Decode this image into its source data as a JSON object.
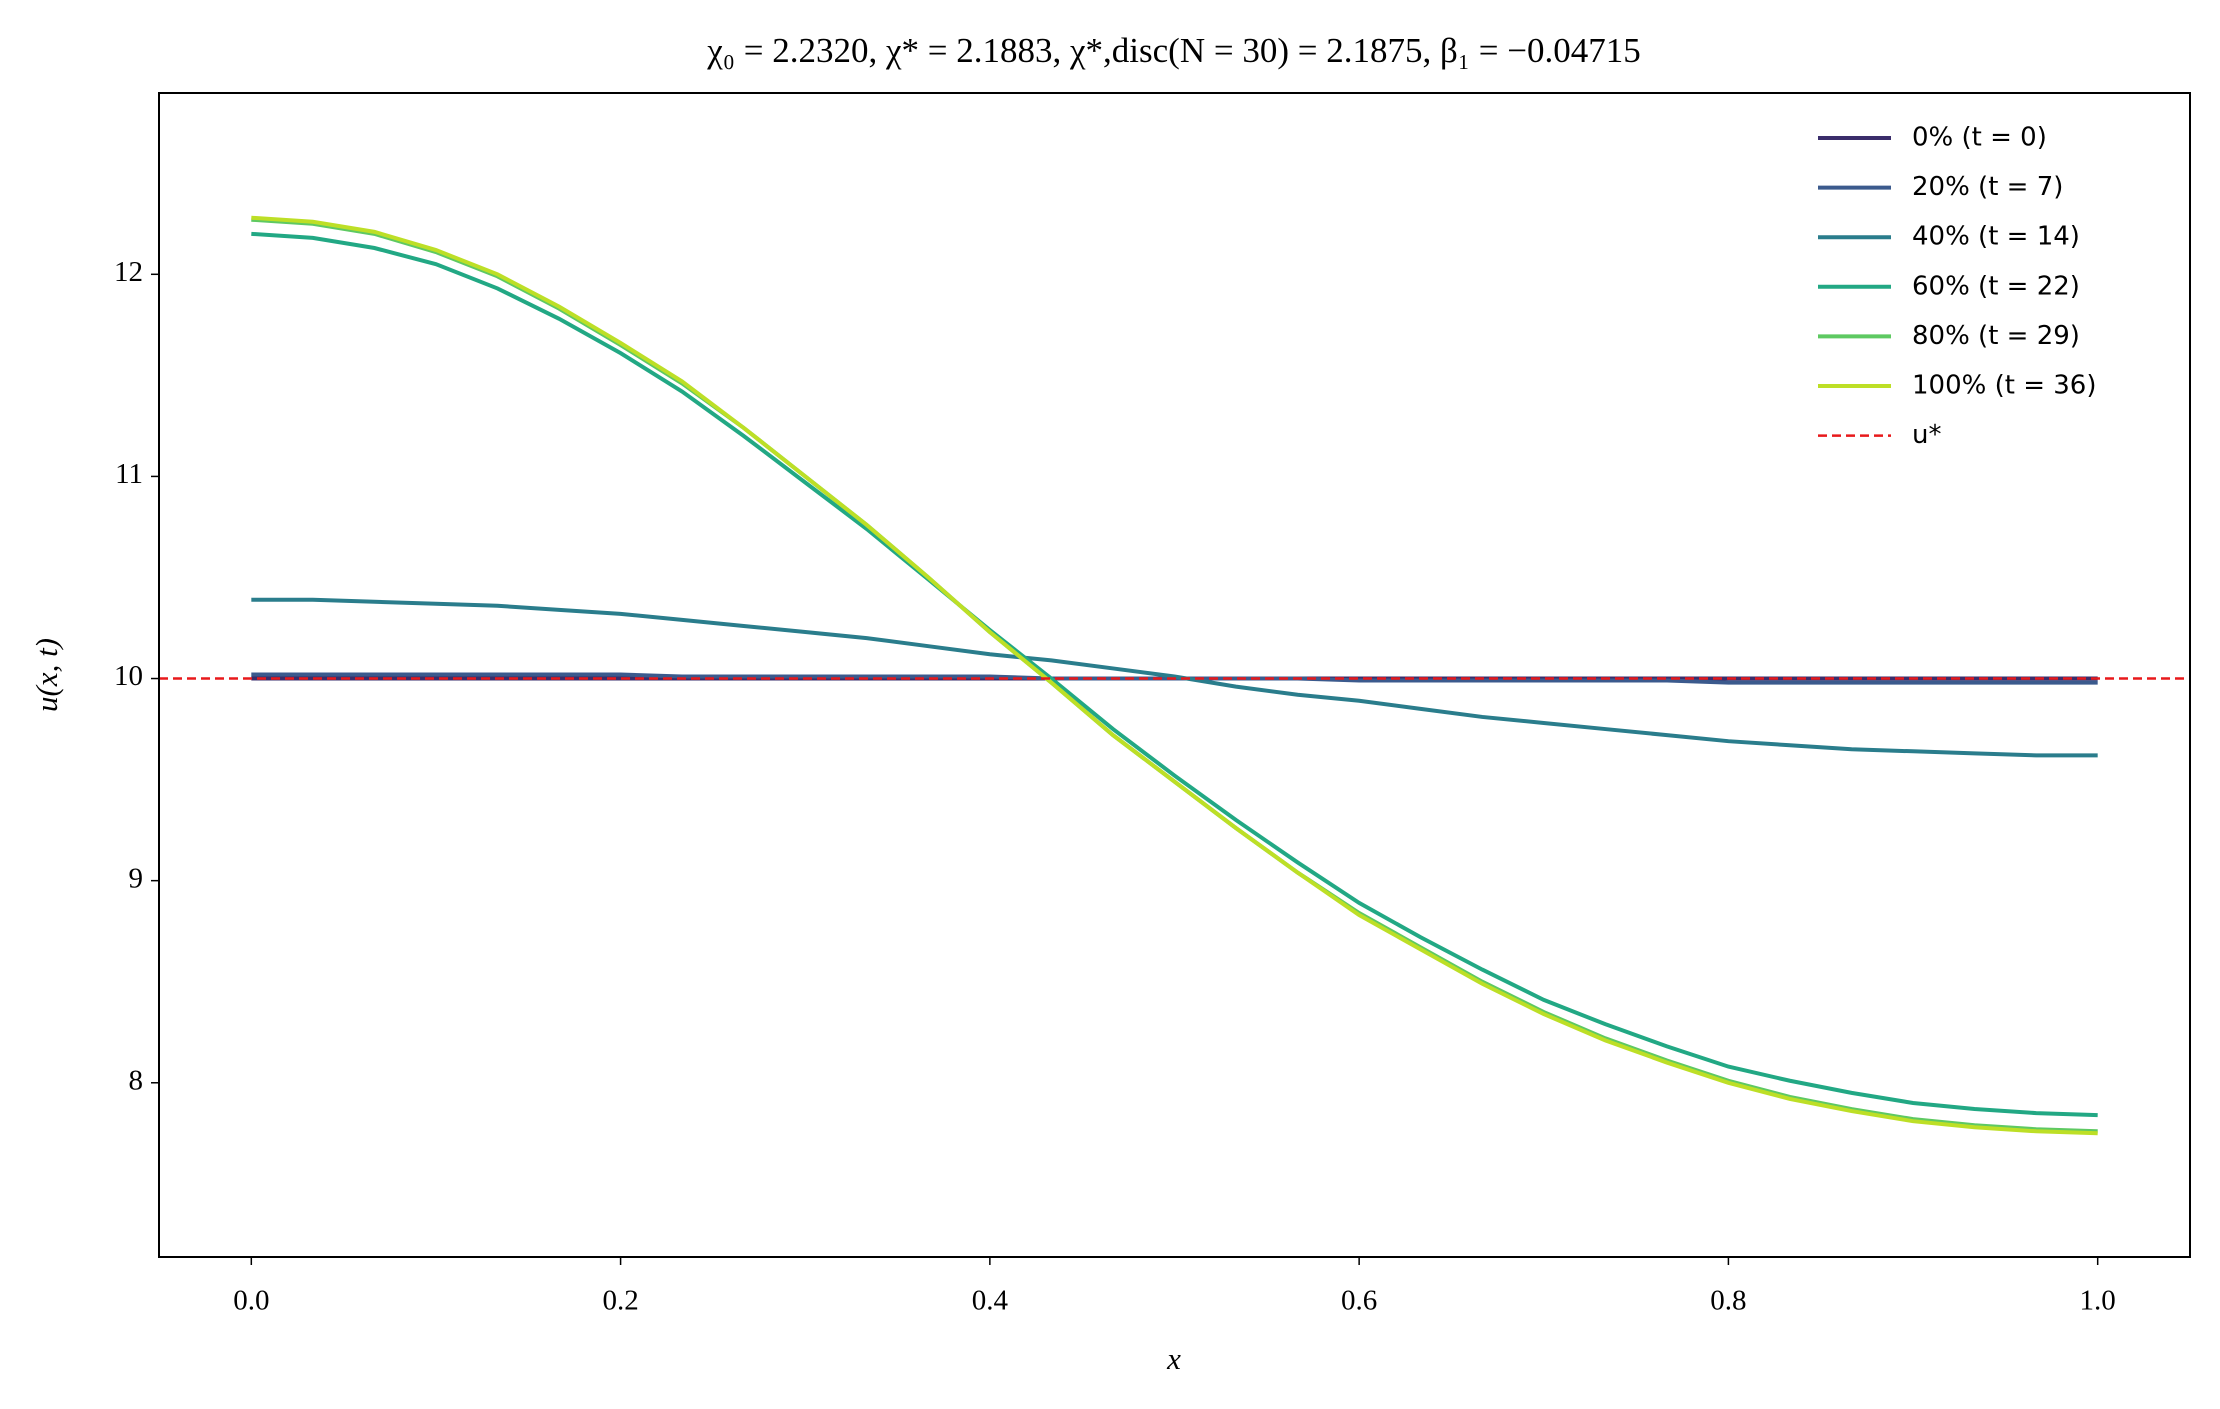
{
  "chart_data": {
    "type": "line",
    "title": "χ₀ = 2.2320,  χ* = 2.1883,  χ*,disc(N = 30) = 2.1875,  β₁ = −0.04715",
    "x_label": "x",
    "y_label": "u(x, t)",
    "xlim": [
      -0.05,
      1.05
    ],
    "ylim": [
      7.138,
      12.897
    ],
    "xticks": [
      {
        "value": 0,
        "label": "0.0"
      },
      0.2,
      0.4,
      0.6,
      0.8,
      {
        "value": 1,
        "label": "1.0"
      }
    ],
    "yticks": [
      8,
      9,
      10,
      11,
      12
    ],
    "grid": false,
    "legend": "upper right",
    "x": [
      0,
      0.0333,
      0.0667,
      0.1,
      0.1333,
      0.1667,
      0.2,
      0.2333,
      0.2667,
      0.3,
      0.3333,
      0.3667,
      0.4,
      0.4333,
      0.4667,
      0.5,
      0.5333,
      0.5667,
      0.6,
      0.6333,
      0.6667,
      0.7,
      0.7333,
      0.7667,
      0.8,
      0.8333,
      0.8667,
      0.9,
      0.9333,
      0.9667,
      1
    ],
    "series": [
      {
        "name": "0% (t = 0)",
        "color": "#3a2d6b",
        "values": [
          10,
          10,
          10,
          10,
          10,
          10,
          10,
          10,
          10,
          10,
          10,
          10,
          10,
          10,
          10,
          10,
          10,
          10,
          10,
          10,
          10,
          10,
          10,
          10,
          10,
          10,
          10,
          10,
          10,
          10,
          10
        ]
      },
      {
        "name": "20% (t = 7)",
        "color": "#3b5a8d",
        "values": [
          10.02,
          10.02,
          10.02,
          10.02,
          10.02,
          10.02,
          10.02,
          10.01,
          10.01,
          10.01,
          10.01,
          10.01,
          10.01,
          10.0,
          10.0,
          10.0,
          10.0,
          10.0,
          9.99,
          9.99,
          9.99,
          9.99,
          9.99,
          9.99,
          9.98,
          9.98,
          9.98,
          9.98,
          9.98,
          9.98,
          9.98
        ]
      },
      {
        "name": "40% (t = 14)",
        "color": "#2a7d8c",
        "values": [
          10.39,
          10.39,
          10.38,
          10.37,
          10.36,
          10.34,
          10.32,
          10.29,
          10.26,
          10.23,
          10.2,
          10.16,
          10.12,
          10.09,
          10.05,
          10.01,
          9.96,
          9.92,
          9.89,
          9.85,
          9.81,
          9.78,
          9.75,
          9.72,
          9.69,
          9.67,
          9.65,
          9.64,
          9.63,
          9.62,
          9.62
        ]
      },
      {
        "name": "60% (t = 22)",
        "color": "#22a884",
        "values": [
          12.2,
          12.18,
          12.13,
          12.05,
          11.93,
          11.78,
          11.61,
          11.42,
          11.2,
          10.97,
          10.74,
          10.49,
          10.24,
          10.0,
          9.75,
          9.52,
          9.3,
          9.09,
          8.89,
          8.72,
          8.56,
          8.41,
          8.29,
          8.18,
          8.08,
          8.01,
          7.95,
          7.9,
          7.87,
          7.85,
          7.84
        ]
      },
      {
        "name": "80% (t = 29)",
        "color": "#5ec962",
        "values": [
          12.27,
          12.25,
          12.2,
          12.11,
          11.99,
          11.83,
          11.65,
          11.46,
          11.24,
          11.0,
          10.76,
          10.5,
          10.23,
          9.98,
          9.72,
          9.49,
          9.26,
          9.04,
          8.84,
          8.67,
          8.5,
          8.35,
          8.22,
          8.11,
          8.01,
          7.93,
          7.87,
          7.82,
          7.79,
          7.77,
          7.76
        ]
      },
      {
        "name": "100% (t = 36)",
        "color": "#bddf26",
        "values": [
          12.28,
          12.26,
          12.21,
          12.12,
          12.0,
          11.84,
          11.66,
          11.47,
          11.24,
          11.0,
          10.76,
          10.5,
          10.23,
          9.98,
          9.72,
          9.49,
          9.26,
          9.04,
          8.83,
          8.66,
          8.49,
          8.34,
          8.21,
          8.1,
          8.0,
          7.92,
          7.86,
          7.81,
          7.78,
          7.76,
          7.75
        ]
      }
    ],
    "hlines": [
      {
        "name": "u*",
        "value": 10,
        "color": "#e8191b",
        "dashed": true
      }
    ]
  }
}
